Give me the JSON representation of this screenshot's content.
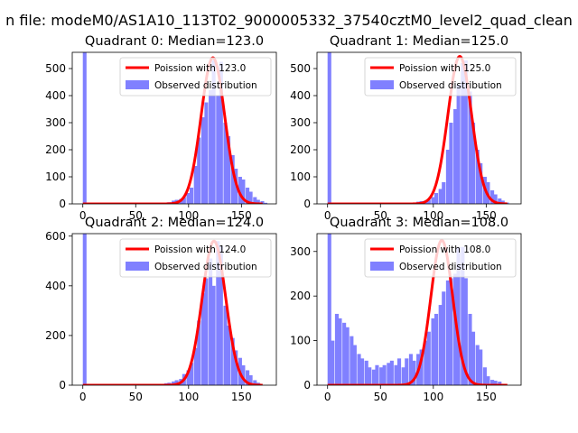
{
  "figure": {
    "suptitle": "n file: modeM0/AS1A10_113T02_9000005332_37540cztM0_level2_quad_clean"
  },
  "chart_data": [
    {
      "type": "bar",
      "title": "Quadrant 0: Median=123.0",
      "xlim": [
        -10,
        183
      ],
      "ylim": [
        0,
        560
      ],
      "xticks": [
        0,
        50,
        100,
        150
      ],
      "yticks": [
        0,
        100,
        200,
        300,
        400,
        500
      ],
      "legend": [
        "Poission with 123.0",
        "Observed distribution"
      ],
      "legend_loc": "top-right",
      "colors": {
        "line": "#ff0000",
        "bars": "#8080ff"
      },
      "poisson_mean": 123.0,
      "poisson_peak": 540,
      "bin_width": 3.5,
      "bins": [
        [
          0,
          560
        ],
        [
          73,
          2
        ],
        [
          77,
          5
        ],
        [
          80,
          6
        ],
        [
          84,
          12
        ],
        [
          87,
          15
        ],
        [
          91,
          18
        ],
        [
          94,
          25
        ],
        [
          98,
          40
        ],
        [
          101,
          60
        ],
        [
          105,
          140
        ],
        [
          108,
          245
        ],
        [
          112,
          320
        ],
        [
          115,
          375
        ],
        [
          119,
          420
        ],
        [
          122,
          530
        ],
        [
          126,
          400
        ],
        [
          129,
          525
        ],
        [
          133,
          300
        ],
        [
          136,
          250
        ],
        [
          140,
          180
        ],
        [
          143,
          130
        ],
        [
          147,
          100
        ],
        [
          150,
          90
        ],
        [
          154,
          60
        ],
        [
          157,
          45
        ],
        [
          161,
          25
        ],
        [
          164,
          15
        ],
        [
          168,
          10
        ],
        [
          171,
          4
        ]
      ]
    },
    {
      "type": "bar",
      "title": "Quadrant 1: Median=125.0",
      "xlim": [
        -10,
        183
      ],
      "ylim": [
        0,
        560
      ],
      "xticks": [
        0,
        50,
        100,
        150
      ],
      "yticks": [
        0,
        100,
        200,
        300,
        400,
        500
      ],
      "legend": [
        "Poission with 125.0",
        "Observed distribution"
      ],
      "legend_loc": "top-right",
      "colors": {
        "line": "#ff0000",
        "bars": "#8080ff"
      },
      "poisson_mean": 125.0,
      "poisson_peak": 545,
      "bin_width": 3.5,
      "bins": [
        [
          0,
          560
        ],
        [
          10,
          2
        ],
        [
          45,
          3
        ],
        [
          70,
          5
        ],
        [
          84,
          8
        ],
        [
          87,
          10
        ],
        [
          91,
          12
        ],
        [
          94,
          15
        ],
        [
          98,
          25
        ],
        [
          101,
          40
        ],
        [
          105,
          55
        ],
        [
          108,
          80
        ],
        [
          112,
          200
        ],
        [
          115,
          300
        ],
        [
          119,
          350
        ],
        [
          122,
          440
        ],
        [
          126,
          520
        ],
        [
          129,
          530
        ],
        [
          133,
          415
        ],
        [
          136,
          300
        ],
        [
          140,
          200
        ],
        [
          143,
          150
        ],
        [
          147,
          100
        ],
        [
          150,
          80
        ],
        [
          154,
          50
        ],
        [
          157,
          35
        ],
        [
          161,
          20
        ],
        [
          164,
          12
        ],
        [
          168,
          5
        ]
      ]
    },
    {
      "type": "bar",
      "title": "Quadrant 2: Median=124.0",
      "xlim": [
        -10,
        183
      ],
      "ylim": [
        0,
        610
      ],
      "xticks": [
        0,
        50,
        100,
        150
      ],
      "yticks": [
        0,
        200,
        400,
        600
      ],
      "legend": [
        "Poission with 124.0",
        "Observed distribution"
      ],
      "legend_loc": "top-right",
      "colors": {
        "line": "#ff0000",
        "bars": "#8080ff"
      },
      "poisson_mean": 124.0,
      "poisson_peak": 580,
      "bin_width": 3.5,
      "bins": [
        [
          0,
          610
        ],
        [
          73,
          5
        ],
        [
          77,
          8
        ],
        [
          80,
          10
        ],
        [
          84,
          15
        ],
        [
          87,
          20
        ],
        [
          91,
          25
        ],
        [
          94,
          45
        ],
        [
          98,
          60
        ],
        [
          101,
          90
        ],
        [
          105,
          150
        ],
        [
          108,
          260
        ],
        [
          112,
          370
        ],
        [
          115,
          430
        ],
        [
          119,
          510
        ],
        [
          122,
          400
        ],
        [
          126,
          580
        ],
        [
          129,
          560
        ],
        [
          133,
          320
        ],
        [
          136,
          240
        ],
        [
          140,
          190
        ],
        [
          143,
          140
        ],
        [
          147,
          110
        ],
        [
          150,
          80
        ],
        [
          154,
          60
        ],
        [
          157,
          40
        ],
        [
          161,
          20
        ],
        [
          164,
          10
        ]
      ]
    },
    {
      "type": "bar",
      "title": "Quadrant 3: Median=108.0",
      "xlim": [
        -10,
        183
      ],
      "ylim": [
        0,
        340
      ],
      "xticks": [
        0,
        50,
        100,
        150
      ],
      "yticks": [
        0,
        100,
        200,
        300
      ],
      "legend": [
        "Poission with 108.0",
        "Observed distribution"
      ],
      "legend_loc": "top-right",
      "colors": {
        "line": "#ff0000",
        "bars": "#8080ff"
      },
      "poisson_mean": 108.0,
      "poisson_peak": 325,
      "bin_width": 3.5,
      "bins": [
        [
          0,
          340
        ],
        [
          3,
          100
        ],
        [
          7,
          160
        ],
        [
          10,
          150
        ],
        [
          14,
          140
        ],
        [
          17,
          130
        ],
        [
          21,
          110
        ],
        [
          24,
          90
        ],
        [
          28,
          70
        ],
        [
          31,
          60
        ],
        [
          35,
          55
        ],
        [
          38,
          40
        ],
        [
          42,
          35
        ],
        [
          45,
          45
        ],
        [
          49,
          40
        ],
        [
          52,
          45
        ],
        [
          56,
          50
        ],
        [
          59,
          55
        ],
        [
          63,
          45
        ],
        [
          66,
          60
        ],
        [
          70,
          40
        ],
        [
          73,
          60
        ],
        [
          77,
          70
        ],
        [
          80,
          55
        ],
        [
          84,
          70
        ],
        [
          87,
          80
        ],
        [
          91,
          100
        ],
        [
          94,
          120
        ],
        [
          98,
          150
        ],
        [
          101,
          160
        ],
        [
          105,
          180
        ],
        [
          108,
          210
        ],
        [
          112,
          235
        ],
        [
          115,
          240
        ],
        [
          119,
          250
        ],
        [
          122,
          310
        ],
        [
          126,
          310
        ],
        [
          129,
          240
        ],
        [
          133,
          160
        ],
        [
          136,
          120
        ],
        [
          140,
          90
        ],
        [
          143,
          80
        ],
        [
          147,
          40
        ],
        [
          150,
          20
        ],
        [
          154,
          12
        ],
        [
          157,
          10
        ],
        [
          161,
          8
        ]
      ]
    }
  ]
}
